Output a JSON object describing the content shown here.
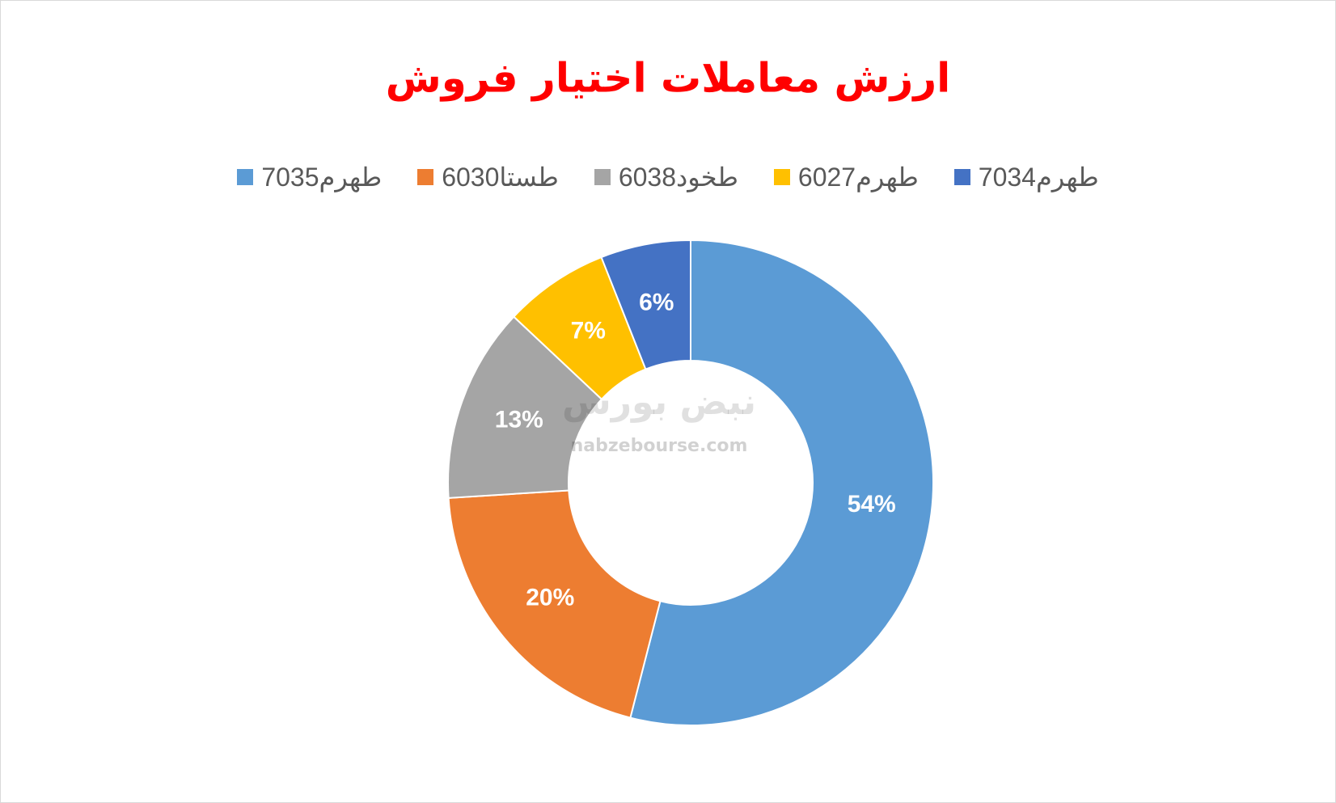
{
  "chart_data": {
    "type": "donut",
    "title": "ارزش معاملات اختیار فروش",
    "categories": [
      "طهرم7035",
      "طستا6030",
      "طخود6038",
      "طهرم6027",
      "طهرم7034"
    ],
    "values": [
      54,
      20,
      13,
      7,
      6
    ],
    "value_labels": [
      "54%",
      "20%",
      "13%",
      "7%",
      "6%"
    ],
    "colors": [
      "#5b9bd5",
      "#ed7d31",
      "#a5a5a5",
      "#ffc000",
      "#4472c4"
    ],
    "watermark": [
      "نبض بورس",
      "nabzebourse.com"
    ]
  }
}
